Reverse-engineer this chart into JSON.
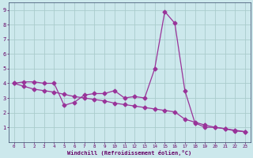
{
  "line1_x": [
    0,
    1,
    2,
    3,
    4,
    5,
    6,
    7,
    8,
    9,
    10,
    11,
    12,
    13,
    14,
    15,
    16,
    17,
    18,
    19,
    20,
    21,
    22,
    23
  ],
  "line1_y": [
    4.0,
    4.1,
    4.1,
    4.0,
    4.0,
    2.5,
    2.7,
    3.2,
    3.3,
    3.3,
    3.5,
    3.0,
    3.1,
    3.0,
    5.0,
    8.9,
    8.1,
    3.5,
    1.3,
    1.0,
    1.0,
    0.9,
    0.75,
    0.7
  ],
  "line2_x": [
    0,
    1,
    2,
    3,
    4,
    5,
    6,
    7,
    8,
    9,
    10,
    11,
    12,
    13,
    14,
    15,
    16,
    17,
    18,
    19,
    20,
    21,
    22,
    23
  ],
  "line2_y": [
    4.0,
    3.8,
    3.6,
    3.5,
    3.4,
    3.25,
    3.1,
    3.0,
    2.9,
    2.8,
    2.65,
    2.55,
    2.45,
    2.35,
    2.25,
    2.15,
    2.05,
    1.55,
    1.35,
    1.15,
    1.0,
    0.9,
    0.8,
    0.7
  ],
  "line_color": "#993399",
  "bg_color": "#cce8ec",
  "grid_color": "#aacccc",
  "axis_color": "#660066",
  "spine_color": "#334466",
  "xlabel": "Windchill (Refroidissement éolien,°C)",
  "ylim": [
    0,
    9.5
  ],
  "xlim": [
    -0.5,
    23.5
  ],
  "yticks": [
    1,
    2,
    3,
    4,
    5,
    6,
    7,
    8,
    9
  ],
  "xticks": [
    0,
    1,
    2,
    3,
    4,
    5,
    6,
    7,
    8,
    9,
    10,
    11,
    12,
    13,
    14,
    15,
    16,
    17,
    18,
    19,
    20,
    21,
    22,
    23
  ],
  "marker": "D",
  "markersize": 2.5,
  "linewidth": 0.9
}
